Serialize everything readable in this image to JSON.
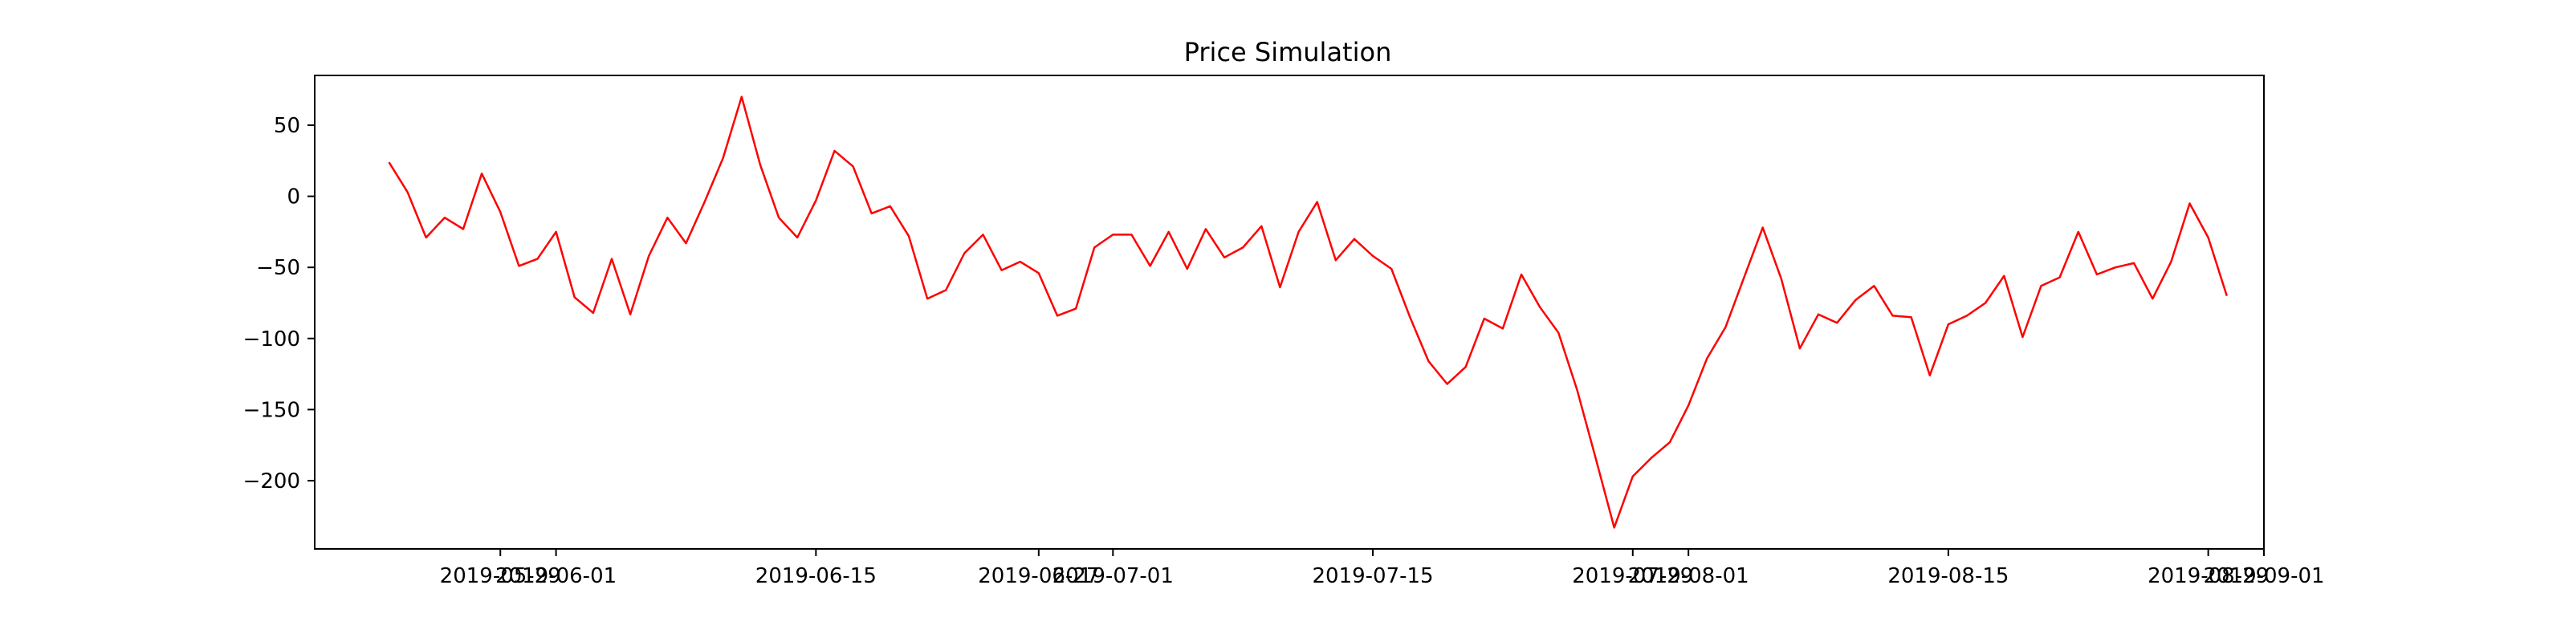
{
  "chart_data": {
    "type": "line",
    "title": "Price Simulation",
    "xlabel": "",
    "ylabel": "",
    "x_start": "2019-05-23",
    "x_step_days": 1,
    "xlim": [
      "2019-05-19",
      "2019-09-01"
    ],
    "ylim": [
      -248,
      85
    ],
    "y_ticks": [
      50,
      0,
      -50,
      -100,
      -150,
      -200
    ],
    "x_ticks": [
      {
        "date": "2019-05-29",
        "label": "2019-05-29"
      },
      {
        "date": "2019-06-01",
        "label": "2019-06-01"
      },
      {
        "date": "2019-06-15",
        "label": "2019-06-15"
      },
      {
        "date": "2019-06-27",
        "label": "2019-06-27"
      },
      {
        "date": "2019-07-01",
        "label": "2019-07-01"
      },
      {
        "date": "2019-07-15",
        "label": "2019-07-15"
      },
      {
        "date": "2019-07-29",
        "label": "2019-07-29"
      },
      {
        "date": "2019-08-01",
        "label": "2019-08-01"
      },
      {
        "date": "2019-08-15",
        "label": "2019-08-15"
      },
      {
        "date": "2019-08-29",
        "label": "2019-08-29"
      },
      {
        "date": "2019-09-01",
        "label": "2019-09-01"
      }
    ],
    "grid": false,
    "series": [
      {
        "color": "#ff0000",
        "values": [
          24,
          3,
          -29,
          -15,
          -23,
          16,
          -11,
          -49,
          -44,
          -25,
          -71,
          -82,
          -44,
          -83,
          -42,
          -15,
          -33,
          -4,
          27,
          70,
          22,
          -15,
          -29,
          -3,
          32,
          21,
          -12,
          -7,
          -28,
          -72,
          -66,
          -40,
          -27,
          -52,
          -46,
          -54,
          -84,
          -79,
          -36,
          -27,
          -27,
          -49,
          -25,
          -51,
          -23,
          -43,
          -36,
          -21,
          -64,
          -25,
          -4,
          -45,
          -30,
          -42,
          -51,
          -85,
          -116,
          -132,
          -120,
          -86,
          -93,
          -55,
          -78,
          -96,
          -136,
          -184,
          -233,
          -197,
          -184,
          -173,
          -147,
          -114,
          -92,
          -57,
          -22,
          -58,
          -107,
          -83,
          -89,
          -73,
          -63,
          -84,
          -85,
          -126,
          -90,
          -84,
          -75,
          -56,
          -99,
          -63,
          -57,
          -25,
          -55,
          -50,
          -47,
          -72,
          -46,
          -5,
          -29,
          -70
        ]
      }
    ]
  }
}
